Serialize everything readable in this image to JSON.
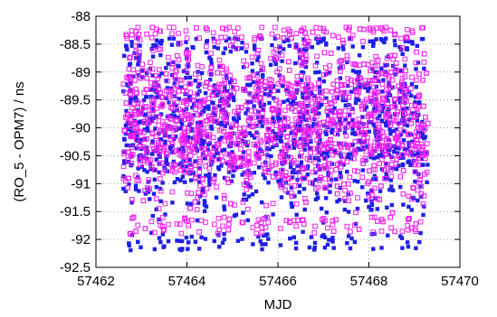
{
  "chart_data": {
    "type": "scatter",
    "title": "",
    "xlabel": "MJD",
    "ylabel": "(RO_5 - OPM7) / ns",
    "xlim": [
      57462,
      57470
    ],
    "ylim": [
      -92.5,
      -88
    ],
    "x_ticks": [
      {
        "value": 57462,
        "label": "57462"
      },
      {
        "value": 57464,
        "label": "57464"
      },
      {
        "value": 57466,
        "label": "57466"
      },
      {
        "value": 57468,
        "label": "57468"
      },
      {
        "value": 57470,
        "label": "57470"
      }
    ],
    "y_ticks": [
      {
        "value": -88,
        "label": "-88"
      },
      {
        "value": -88.5,
        "label": "-88.5"
      },
      {
        "value": -89,
        "label": "-89"
      },
      {
        "value": -89.5,
        "label": "-89.5"
      },
      {
        "value": -90,
        "label": "-90"
      },
      {
        "value": -90.5,
        "label": "-90.5"
      },
      {
        "value": -91,
        "label": "-91"
      },
      {
        "value": -91.5,
        "label": "-91.5"
      },
      {
        "value": -92,
        "label": "-92"
      },
      {
        "value": -92.5,
        "label": "-92.5"
      }
    ],
    "grid": true,
    "legend": "none",
    "series": [
      {
        "marker": "filled-square",
        "color": "#1f1fe6",
        "x_range": [
          57462.6,
          57469.3
        ],
        "center": -90.05,
        "envelope": {
          "upper": -88.6,
          "lower": -91.9
        },
        "outlier_range": [
          -92.2,
          -88.4
        ]
      },
      {
        "marker": "open-square",
        "color": "#ee22ee",
        "x_range": [
          57462.6,
          57469.3
        ],
        "center": -89.9,
        "envelope": {
          "upper": -88.4,
          "lower": -91.6
        },
        "outlier_range": [
          -91.9,
          -88.2
        ]
      }
    ]
  }
}
